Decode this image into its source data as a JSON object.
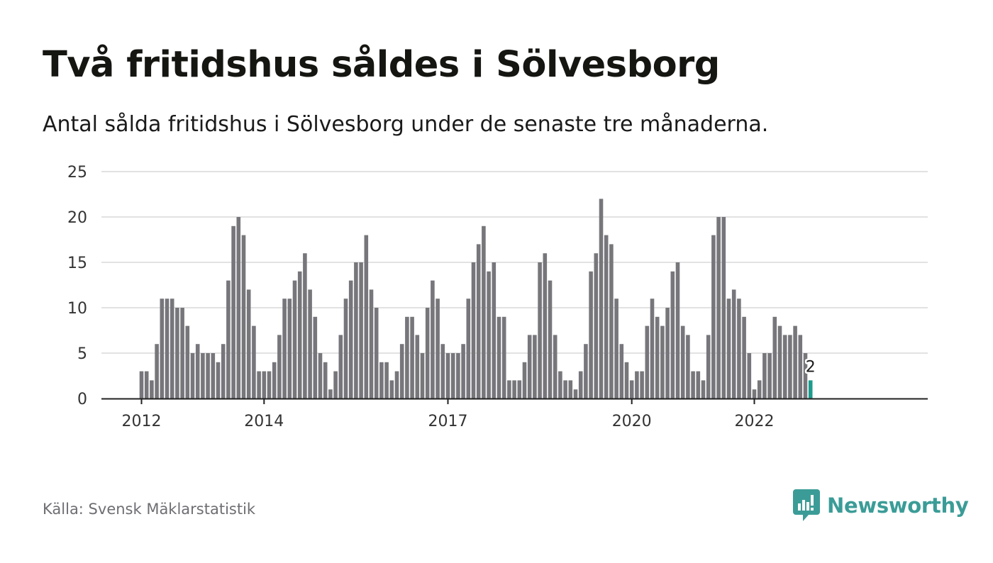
{
  "header": {
    "title": "Två fritidshus såldes i Sölvesborg",
    "subtitle": "Antal sålda fritidshus i Sölvesborg under de senaste tre månaderna."
  },
  "footer": {
    "source": "Källa: Svensk Mäklarstatistik",
    "brand_name": "Newsworthy",
    "brand_icon": "newsworthy-logo-icon"
  },
  "colors": {
    "bar": "#77767b",
    "highlight": "#1d9b8c",
    "grid": "#d9d9d9",
    "axis": "#222222",
    "brand": "#3b9c97"
  },
  "chart_data": {
    "type": "bar",
    "x_start": "2012-01",
    "x_step": "month",
    "ylim": [
      0,
      25
    ],
    "yticks": [
      0,
      5,
      10,
      15,
      20,
      25
    ],
    "xtick_labels": [
      {
        "label": "2012",
        "month": "2012-01"
      },
      {
        "label": "2014",
        "month": "2014-01"
      },
      {
        "label": "2017",
        "month": "2017-01"
      },
      {
        "label": "2020",
        "month": "2020-01"
      },
      {
        "label": "2022",
        "month": "2022-01"
      }
    ],
    "values": [
      3,
      3,
      2,
      6,
      11,
      11,
      11,
      10,
      10,
      8,
      5,
      6,
      5,
      5,
      5,
      4,
      6,
      13,
      19,
      20,
      18,
      12,
      8,
      3,
      3,
      3,
      4,
      7,
      11,
      11,
      13,
      14,
      16,
      12,
      9,
      5,
      4,
      1,
      3,
      7,
      11,
      13,
      15,
      15,
      18,
      12,
      10,
      4,
      4,
      2,
      3,
      6,
      9,
      9,
      7,
      5,
      10,
      13,
      11,
      6,
      5,
      5,
      5,
      6,
      11,
      15,
      17,
      19,
      14,
      15,
      9,
      9,
      2,
      2,
      2,
      4,
      7,
      7,
      15,
      16,
      13,
      7,
      3,
      2,
      2,
      1,
      3,
      6,
      14,
      16,
      22,
      18,
      17,
      11,
      6,
      4,
      2,
      3,
      3,
      8,
      11,
      9,
      8,
      10,
      14,
      15,
      8,
      7,
      3,
      3,
      2,
      7,
      18,
      20,
      20,
      11,
      12,
      11,
      9,
      5,
      1,
      2,
      5,
      5,
      9,
      8,
      7,
      7,
      8,
      7,
      5,
      2
    ],
    "highlight_last": true,
    "data_label": "2",
    "grid": true,
    "legend": "none"
  }
}
